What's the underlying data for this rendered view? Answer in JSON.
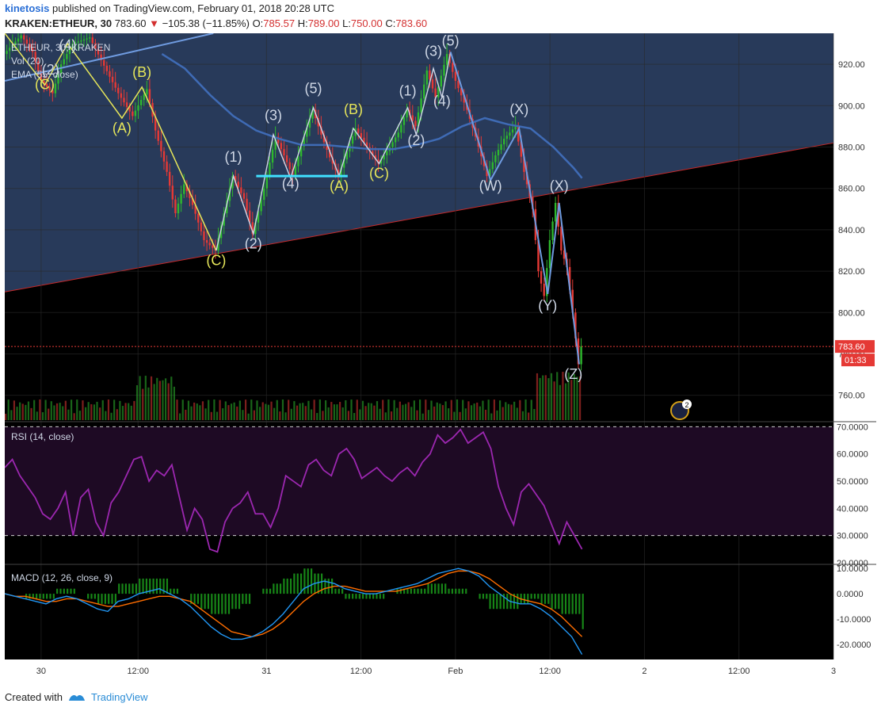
{
  "header": {
    "user": "kinetosis",
    "published_text": "published on TradingView.com, February 01, 2018 20:28 UTC",
    "symbol": "KRAKEN:ETHEUR, 30",
    "last": "783.60",
    "change": "−105.38 (−11.85%)",
    "open_label": "O:",
    "open": "785.57",
    "high_label": "H:",
    "high": "789.00",
    "low_label": "L:",
    "low": "750.00",
    "close_label": "C:",
    "close": "783.60"
  },
  "footer": {
    "created_with": "Created with",
    "brand": "TradingView"
  },
  "colors": {
    "bg": "#000000",
    "channel_fill": "#283a5a",
    "up": "#26a69a",
    "up_bright": "#2eb82e",
    "down": "#e53935",
    "ema": "#3f6bb5",
    "rsi": "#9c27b0",
    "rsi_band": "#1e0a24",
    "macd": "#2196f3",
    "signal": "#ff6d00",
    "hist": "#1b9e1b",
    "wave_yellow": "#e6e65a",
    "wave_blue": "#6f9be0",
    "cyan": "#40e0ff",
    "text_light": "#d0d8e6"
  },
  "chart_data": [
    {
      "type": "line",
      "title": "ETHEUR, 30, KRAKEN",
      "indicators": [
        "Vol (20)",
        "EMA (55, close)"
      ],
      "y_ticks": [
        760,
        780,
        800,
        820,
        840,
        860,
        880,
        900,
        920
      ],
      "ylim": [
        748,
        935
      ],
      "x_tick_labels": [
        "30",
        "12:00",
        "31",
        "12:00",
        "Feb",
        "12:00",
        "2",
        "12:00",
        "3"
      ],
      "last_price_tag": "783.60",
      "countdown_tag": "01:33",
      "price_path": [
        {
          "x": 0,
          "y": 925
        },
        {
          "x": 6,
          "y": 934
        },
        {
          "x": 10,
          "y": 926
        },
        {
          "x": 13,
          "y": 912
        },
        {
          "x": 17,
          "y": 906
        },
        {
          "x": 20,
          "y": 920
        },
        {
          "x": 24,
          "y": 930
        },
        {
          "x": 30,
          "y": 933
        },
        {
          "x": 34,
          "y": 922
        },
        {
          "x": 40,
          "y": 906
        },
        {
          "x": 45,
          "y": 895
        },
        {
          "x": 50,
          "y": 908
        },
        {
          "x": 53,
          "y": 888
        },
        {
          "x": 57,
          "y": 868
        },
        {
          "x": 60,
          "y": 848
        },
        {
          "x": 63,
          "y": 862
        },
        {
          "x": 66,
          "y": 852
        },
        {
          "x": 70,
          "y": 835
        },
        {
          "x": 74,
          "y": 830
        },
        {
          "x": 77,
          "y": 848
        },
        {
          "x": 80,
          "y": 866
        },
        {
          "x": 84,
          "y": 855
        },
        {
          "x": 87,
          "y": 838
        },
        {
          "x": 91,
          "y": 860
        },
        {
          "x": 95,
          "y": 885
        },
        {
          "x": 98,
          "y": 876
        },
        {
          "x": 101,
          "y": 866
        },
        {
          "x": 105,
          "y": 885
        },
        {
          "x": 108,
          "y": 898
        },
        {
          "x": 111,
          "y": 886
        },
        {
          "x": 114,
          "y": 875
        },
        {
          "x": 117,
          "y": 866
        },
        {
          "x": 120,
          "y": 878
        },
        {
          "x": 123,
          "y": 889
        },
        {
          "x": 127,
          "y": 880
        },
        {
          "x": 131,
          "y": 872
        },
        {
          "x": 135,
          "y": 880
        },
        {
          "x": 138,
          "y": 887
        },
        {
          "x": 141,
          "y": 898
        },
        {
          "x": 144,
          "y": 890
        },
        {
          "x": 148,
          "y": 917
        },
        {
          "x": 151,
          "y": 904
        },
        {
          "x": 155,
          "y": 925
        },
        {
          "x": 158,
          "y": 912
        },
        {
          "x": 162,
          "y": 898
        },
        {
          "x": 165,
          "y": 885
        },
        {
          "x": 169,
          "y": 866
        },
        {
          "x": 172,
          "y": 876
        },
        {
          "x": 175,
          "y": 884
        },
        {
          "x": 179,
          "y": 890
        },
        {
          "x": 182,
          "y": 868
        },
        {
          "x": 185,
          "y": 850
        },
        {
          "x": 187,
          "y": 820
        },
        {
          "x": 189,
          "y": 808
        },
        {
          "x": 191,
          "y": 835
        },
        {
          "x": 193,
          "y": 853
        },
        {
          "x": 195,
          "y": 830
        },
        {
          "x": 197,
          "y": 822
        },
        {
          "x": 199,
          "y": 800
        },
        {
          "x": 201,
          "y": 775
        },
        {
          "x": 202,
          "y": 783.6
        }
      ],
      "ema_path": [
        {
          "x": 55,
          "y": 925
        },
        {
          "x": 63,
          "y": 918
        },
        {
          "x": 72,
          "y": 905
        },
        {
          "x": 80,
          "y": 895
        },
        {
          "x": 88,
          "y": 888
        },
        {
          "x": 96,
          "y": 884
        },
        {
          "x": 104,
          "y": 881
        },
        {
          "x": 112,
          "y": 881
        },
        {
          "x": 120,
          "y": 880
        },
        {
          "x": 128,
          "y": 879
        },
        {
          "x": 136,
          "y": 879
        },
        {
          "x": 144,
          "y": 881
        },
        {
          "x": 152,
          "y": 884
        },
        {
          "x": 160,
          "y": 890
        },
        {
          "x": 168,
          "y": 894
        },
        {
          "x": 176,
          "y": 891
        },
        {
          "x": 184,
          "y": 889
        },
        {
          "x": 192,
          "y": 880
        },
        {
          "x": 199,
          "y": 870
        },
        {
          "x": 202,
          "y": 865
        }
      ],
      "channel_lower": [
        {
          "x": 0,
          "y": 810
        },
        {
          "x": 290,
          "y": 882
        }
      ],
      "wave_labels": [
        {
          "x": 14,
          "y": 908,
          "text": "(C)",
          "color": "yellow"
        },
        {
          "x": 16,
          "y": 915,
          "text": "(2)",
          "color": "light"
        },
        {
          "x": 22,
          "y": 927,
          "text": "(4)",
          "color": "light"
        },
        {
          "x": 41,
          "y": 887,
          "text": "(A)",
          "color": "yellow"
        },
        {
          "x": 48,
          "y": 914,
          "text": "(B)",
          "color": "yellow"
        },
        {
          "x": 74,
          "y": 823,
          "text": "(C)",
          "color": "yellow"
        },
        {
          "x": 80,
          "y": 873,
          "text": "(1)",
          "color": "light"
        },
        {
          "x": 87,
          "y": 831,
          "text": "(2)",
          "color": "light"
        },
        {
          "x": 94,
          "y": 893,
          "text": "(3)",
          "color": "light"
        },
        {
          "x": 100,
          "y": 860,
          "text": "(4)",
          "color": "light"
        },
        {
          "x": 108,
          "y": 906,
          "text": "(5)",
          "color": "light"
        },
        {
          "x": 117,
          "y": 859,
          "text": "(A)",
          "color": "yellow"
        },
        {
          "x": 122,
          "y": 896,
          "text": "(B)",
          "color": "yellow"
        },
        {
          "x": 131,
          "y": 865,
          "text": "(C)",
          "color": "yellow"
        },
        {
          "x": 144,
          "y": 881,
          "text": "(2)",
          "color": "light"
        },
        {
          "x": 141,
          "y": 905,
          "text": "(1)",
          "color": "light"
        },
        {
          "x": 150,
          "y": 924,
          "text": "(3)",
          "color": "light"
        },
        {
          "x": 153,
          "y": 900,
          "text": "(4)",
          "color": "light"
        },
        {
          "x": 156,
          "y": 929,
          "text": "(5)",
          "color": "light"
        },
        {
          "x": 170,
          "y": 859,
          "text": "(W)",
          "color": "light"
        },
        {
          "x": 180,
          "y": 896,
          "text": "(X)",
          "color": "light"
        },
        {
          "x": 190,
          "y": 801,
          "text": "(Y)",
          "color": "light"
        },
        {
          "x": 194,
          "y": 859,
          "text": "(X)",
          "color": "light"
        },
        {
          "x": 199,
          "y": 768,
          "text": "(Z)",
          "color": "light"
        }
      ]
    },
    {
      "type": "line",
      "title": "RSI (14, close)",
      "y_ticks": [
        "70.0000",
        "60.0000",
        "50.0000",
        "40.0000",
        "30.0000",
        "20.0000"
      ],
      "ylim": [
        20,
        71
      ],
      "bands": [
        30,
        70
      ],
      "values": [
        55,
        58,
        52,
        48,
        44,
        38,
        36,
        40,
        46,
        30,
        44,
        47,
        35,
        30,
        42,
        46,
        52,
        58,
        59,
        50,
        54,
        52,
        56,
        44,
        32,
        40,
        36,
        25,
        24,
        35,
        40,
        42,
        46,
        38,
        38,
        33,
        40,
        52,
        50,
        48,
        56,
        58,
        54,
        52,
        60,
        62,
        58,
        51,
        53,
        55,
        52,
        50,
        53,
        55,
        52,
        57,
        60,
        67,
        64,
        66,
        69,
        64,
        66,
        68,
        62,
        48,
        40,
        34,
        46,
        49,
        45,
        41,
        34,
        27,
        35,
        30,
        25
      ]
    },
    {
      "type": "line",
      "title": "MACD (12, 26, close, 9)",
      "y_ticks": [
        "10.0000",
        "0.0000",
        "-10.0000",
        "-20.0000"
      ],
      "ylim": [
        -26,
        11
      ],
      "macd": [
        0,
        -1,
        -2,
        -3,
        -4,
        -2,
        -1,
        -2,
        -4,
        -6,
        -7,
        -3,
        -2,
        0,
        1,
        2,
        0,
        -2,
        -5,
        -9,
        -13,
        -16,
        -18,
        -18,
        -17,
        -15,
        -12,
        -8,
        -3,
        2,
        4,
        5,
        4,
        2,
        1,
        0,
        0,
        1,
        2,
        3,
        4,
        6,
        8,
        9,
        10,
        9,
        7,
        3,
        0,
        -3,
        -4,
        -4,
        -6,
        -9,
        -13,
        -17,
        -24
      ],
      "signal": [
        0,
        -1,
        -1,
        -2,
        -3,
        -3,
        -2,
        -2,
        -3,
        -4,
        -5,
        -5,
        -4,
        -3,
        -2,
        -1,
        -1,
        -2,
        -3,
        -6,
        -9,
        -12,
        -15,
        -16,
        -17,
        -16,
        -14,
        -11,
        -7,
        -3,
        0,
        2,
        3,
        3,
        2,
        1,
        1,
        1,
        1,
        2,
        3,
        4,
        6,
        8,
        9,
        9,
        8,
        6,
        3,
        0,
        -2,
        -3,
        -4,
        -6,
        -9,
        -13,
        -17
      ]
    }
  ]
}
